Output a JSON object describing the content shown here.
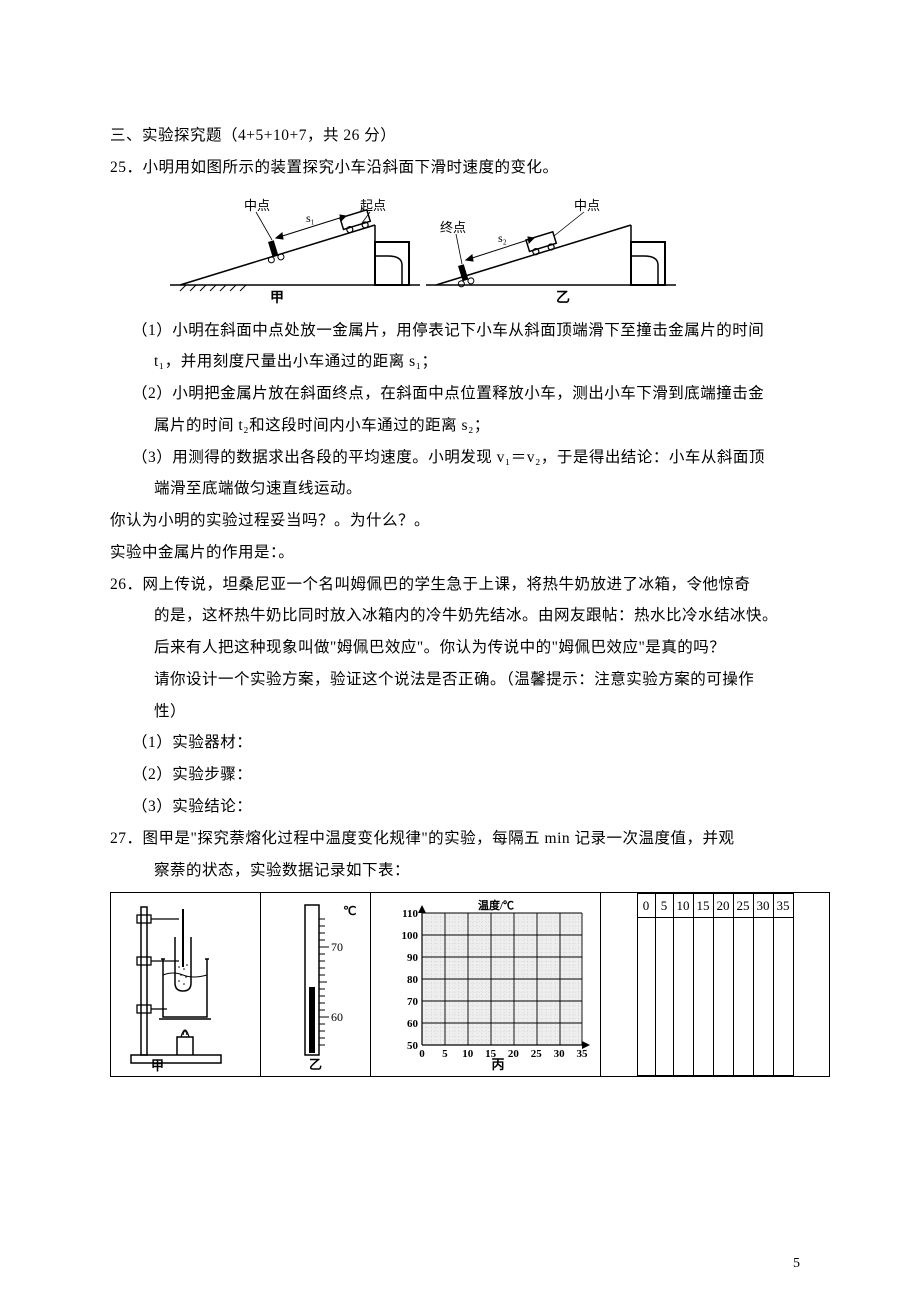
{
  "section": {
    "title": "三、实验探究题（4+5+10+7，共 26 分）"
  },
  "q25": {
    "stem": "25．小明用如图所示的装置探究小车沿斜面下滑时速度的变化。",
    "fig": {
      "labels_left": {
        "midpoint": "中点",
        "start": "起点",
        "s1": "s₁",
        "caption": "甲"
      },
      "labels_right": {
        "midpoint": "中点",
        "end": "终点",
        "s2": "s₂",
        "caption": "乙"
      },
      "stroke": "#000000",
      "fill_block": "#000000"
    },
    "p1": "（1）小明在斜面中点处放一金属片，用停表记下小车从斜面顶端滑下至撞击金属片的时间",
    "p1b": "t₁，并用刻度尺量出小车通过的距离 s₁；",
    "p2": "（2）小明把金属片放在斜面终点，在斜面中点位置释放小车，测出小车下滑到底端撞击金",
    "p2b": "属片的时间 t₂和这段时间内小车通过的距离 s₂；",
    "p3": "（3）用测得的数据求出各段的平均速度。小明发现 v₁＝v₂，于是得出结论：小车从斜面顶",
    "p3b": "端滑至底端做匀速直线运动。",
    "ask1": "你认为小明的实验过程妥当吗？。为什么？。",
    "ask2": "实验中金属片的作用是：。"
  },
  "q26": {
    "l1": "26．网上传说，坦桑尼亚一个名叫姆佩巴的学生急于上课，将热牛奶放进了冰箱，令他惊奇",
    "l2": "的是，这杯热牛奶比同时放入冰箱内的冷牛奶先结冰。由网友跟帖：热水比冷水结冰快。",
    "l3": "后来有人把这种现象叫做\"姆佩巴效应\"。你认为传说中的\"姆佩巴效应\"是真的吗？",
    "l4": "请你设计一个实验方案，验证这个说法是否正确。（温馨提示：注意实验方案的可操作",
    "l5": "性）",
    "a1": "（1）实验器材：",
    "a2": "（2）实验步骤：",
    "a3": "（3）实验结论："
  },
  "q27": {
    "l1": "27．图甲是\"探究萘熔化过程中温度变化规律\"的实验，每隔五 min 记录一次温度值，并观",
    "l2": "察萘的状态，实验数据记录如下表：",
    "apparatus_caption": "甲",
    "thermo_caption": "乙",
    "grid_caption": "丙",
    "chart": {
      "y_label": "温度/℃",
      "y_ticks": [
        50,
        60,
        70,
        80,
        90,
        100,
        110
      ],
      "x_ticks": [
        0,
        5,
        10,
        15,
        20,
        25,
        30,
        35
      ],
      "grid_color": "#000000",
      "inner_grid_color": "#bdbdbd",
      "bg": "#e8e8e8"
    },
    "thermo": {
      "marks": [
        60,
        70
      ],
      "stroke": "#000000"
    },
    "table_header": [
      "0",
      "5",
      "10",
      "15",
      "20",
      "25",
      "30",
      "35"
    ]
  },
  "page_number": "5"
}
